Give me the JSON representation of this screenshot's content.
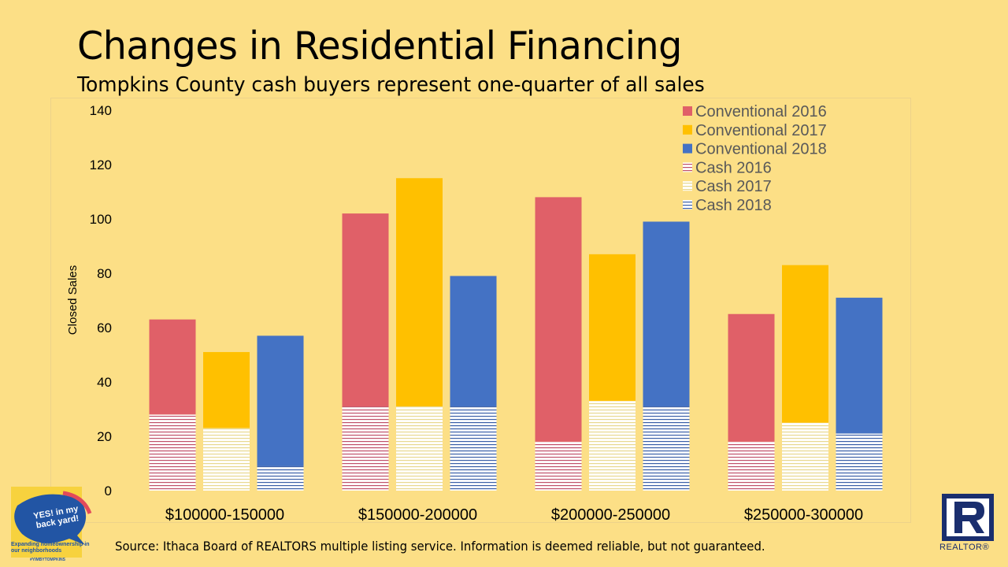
{
  "title": "Changes in Residential Financing",
  "subtitle": "Tompkins County cash buyers represent one-quarter of all sales",
  "source": "Source: Ithaca Board of REALTORS multiple listing service. Information is deemed reliable, but not guaranteed.",
  "logos": {
    "yimby_text": "YES! in my back yard!",
    "yimby_tagline": "Expanding homeownership in our neighborhoods",
    "yimby_hashtag": "#YIMBYTOMPKINS",
    "realtor_text": "REALTOR®"
  },
  "colors": {
    "background": "#FCDF86",
    "conventional_2016": "#E06068",
    "conventional_2017": "#FFC000",
    "conventional_2018": "#4472C4",
    "cash_2016_stripe": "#C0506A",
    "cash_2017_stripe": "#E8D890",
    "cash_2018_stripe": "#3A5FA8",
    "cash_fill": "#FFFFFF"
  },
  "chart_data": {
    "type": "bar",
    "stacked": true,
    "title": "",
    "xlabel": "",
    "ylabel": "Closed Sales",
    "ylim": [
      0,
      140
    ],
    "yticks": [
      0,
      20,
      40,
      60,
      80,
      100,
      120,
      140
    ],
    "grid": false,
    "legend_position": "top-right",
    "categories": [
      "$100000-150000",
      "$150000-200000",
      "$200000-250000",
      "$250000-300000"
    ],
    "years": [
      "2016",
      "2017",
      "2018"
    ],
    "series": [
      {
        "name": "Conventional 2016",
        "type": "conventional",
        "year": "2016",
        "values": [
          35,
          71,
          90,
          47
        ]
      },
      {
        "name": "Conventional 2017",
        "type": "conventional",
        "year": "2017",
        "values": [
          28,
          84,
          54,
          58
        ]
      },
      {
        "name": "Conventional 2018",
        "type": "conventional",
        "year": "2018",
        "values": [
          48,
          48,
          68,
          50
        ]
      },
      {
        "name": "Cash 2016",
        "type": "cash",
        "year": "2016",
        "values": [
          28,
          31,
          18,
          18
        ]
      },
      {
        "name": "Cash 2017",
        "type": "cash",
        "year": "2017",
        "values": [
          23,
          31,
          33,
          25
        ]
      },
      {
        "name": "Cash 2018",
        "type": "cash",
        "year": "2018",
        "values": [
          9,
          31,
          31,
          21
        ]
      }
    ],
    "totals": {
      "2016": [
        63,
        102,
        108,
        65
      ],
      "2017": [
        51,
        115,
        87,
        83
      ],
      "2018": [
        57,
        79,
        99,
        71
      ]
    }
  }
}
